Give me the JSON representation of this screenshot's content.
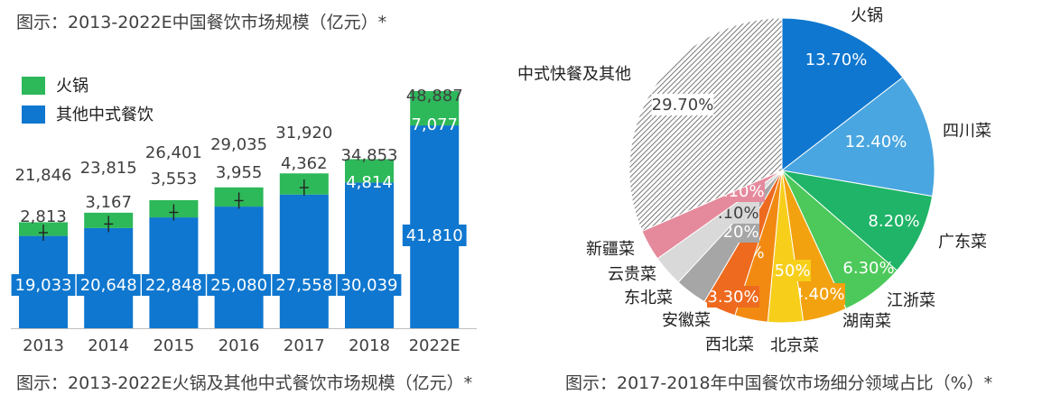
{
  "captions": {
    "top": "图示：2013-2022E中国餐饮市场规模（亿元）*",
    "bottom_left": "图示：2013-2022E火锅及其他中式餐饮市场规模（亿元）*",
    "bottom_right": "图示：2017-2018年中国餐饮市场细分领域占比（%）*"
  },
  "colors": {
    "hotpot": "#2db85a",
    "other": "#0f77cf",
    "text": "#404040"
  },
  "chart_data": [
    {
      "type": "bar",
      "stacked": true,
      "categories": [
        "2013",
        "2014",
        "2015",
        "2016",
        "2017",
        "2018",
        "2022E"
      ],
      "series": [
        {
          "name": "其他中式餐饮",
          "color": "#0f77cf",
          "values": [
            19033,
            20648,
            22848,
            25080,
            27558,
            30039,
            41810
          ],
          "labels": [
            "19,033",
            "20,648",
            "22,848",
            "25,080",
            "27,558",
            "30,039",
            "41,810"
          ]
        },
        {
          "name": "火锅",
          "color": "#2db85a",
          "values": [
            2813,
            3167,
            3553,
            3955,
            4362,
            4814,
            7077
          ],
          "labels": [
            "2,813",
            "3,167",
            "3,553",
            "3,955",
            "4,362",
            "4,814",
            "7,077"
          ]
        }
      ],
      "totals": [
        "21,846",
        "23,815",
        "26,401",
        "29,035",
        "31,920",
        "34,853",
        "48,887"
      ],
      "legend_position": "top-left",
      "grid": false
    },
    {
      "type": "pie",
      "slices": [
        {
          "name": "火锅",
          "value": 13.7,
          "label": "13.70%",
          "color": "#0f77cf",
          "label_style": "white"
        },
        {
          "name": "四川菜",
          "value": 12.4,
          "label": "12.40%",
          "color": "#4aa6e0",
          "label_style": "white"
        },
        {
          "name": "广东菜",
          "value": 8.2,
          "label": "8.20%",
          "color": "#1fb467",
          "label_style": "white"
        },
        {
          "name": "江浙菜",
          "value": 6.3,
          "label": "6.30%",
          "color": "#4cc95a",
          "label_style": "white"
        },
        {
          "name": "湖南菜",
          "value": 4.4,
          "label": "4.40%",
          "color": "#f3a20f",
          "label_style": "box-white"
        },
        {
          "name": "北京菜",
          "value": 3.5,
          "label": "3.50%",
          "color": "#f7cf1b",
          "label_style": "box-white"
        },
        {
          "name": "西北菜",
          "value": 3.3,
          "label": "3.30%",
          "color": "#f28a12",
          "label_style": "box-white"
        },
        {
          "name": "安徽菜",
          "value": 3.3,
          "label": "3.30%",
          "color": "#ee6a1f",
          "label_style": "box-white"
        },
        {
          "name": "东北菜",
          "value": 3.2,
          "label": "3.20%",
          "color": "#a6a6a6",
          "label_style": "box-white"
        },
        {
          "name": "云贵菜",
          "value": 3.1,
          "label": "3.10%",
          "color": "#d9d9d9",
          "label_style": "box-dark"
        },
        {
          "name": "新疆菜",
          "value": 3.1,
          "label": "3.10%",
          "color": "#e58a9c",
          "label_style": "box-white"
        },
        {
          "name": "中式快餐及其他",
          "value": 29.7,
          "label": "29.70%",
          "color": "hatch",
          "label_style": "box-dark"
        }
      ]
    }
  ]
}
